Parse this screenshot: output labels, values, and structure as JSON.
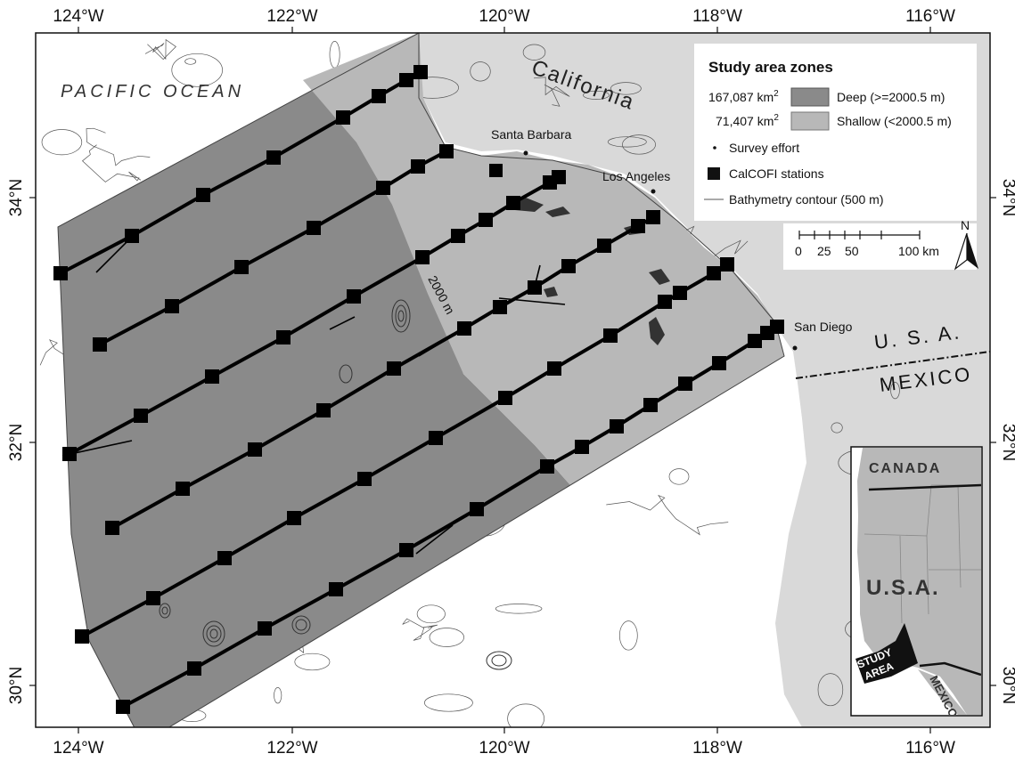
{
  "map": {
    "ticks": {
      "lon": [
        "124°W",
        "122°W",
        "120°W",
        "118°W",
        "116°W"
      ],
      "lat": [
        "34°N",
        "32°N",
        "30°N"
      ]
    },
    "labels": {
      "ocean": "PACIFIC OCEAN",
      "state": "California",
      "usa": "U. S. A.",
      "mexico": "MEXICO",
      "contour": "2000 m"
    },
    "cities": {
      "santa_barbara": "Santa Barbara",
      "los_angeles": "Los Angeles",
      "san_diego": "San Diego"
    },
    "colors": {
      "deep": "#8a8a8a",
      "shallow": "#b8b8b8",
      "land": "#d9d9d9",
      "track": "#000000"
    }
  },
  "legend": {
    "title": "Study area zones",
    "deep_area": "167,087 km",
    "deep_sup": "2",
    "deep_label": "Deep (>=2000.5 m)",
    "shallow_area": "71,407 km",
    "shallow_sup": "2",
    "shallow_label": "Shallow (<2000.5 m)",
    "survey_label": "Survey effort",
    "stations_label": "CalCOFI stations",
    "bathy_label": "Bathymetry contour (500 m)"
  },
  "scalebar": {
    "labels": [
      "0",
      "25",
      "50",
      "100 km"
    ]
  },
  "north_arrow": {
    "label": "N"
  },
  "inset": {
    "canada": "CANADA",
    "usa": "U.S.A.",
    "mexico": "MEXICO",
    "study_line1": "STUDY",
    "study_line2": "AREA"
  }
}
